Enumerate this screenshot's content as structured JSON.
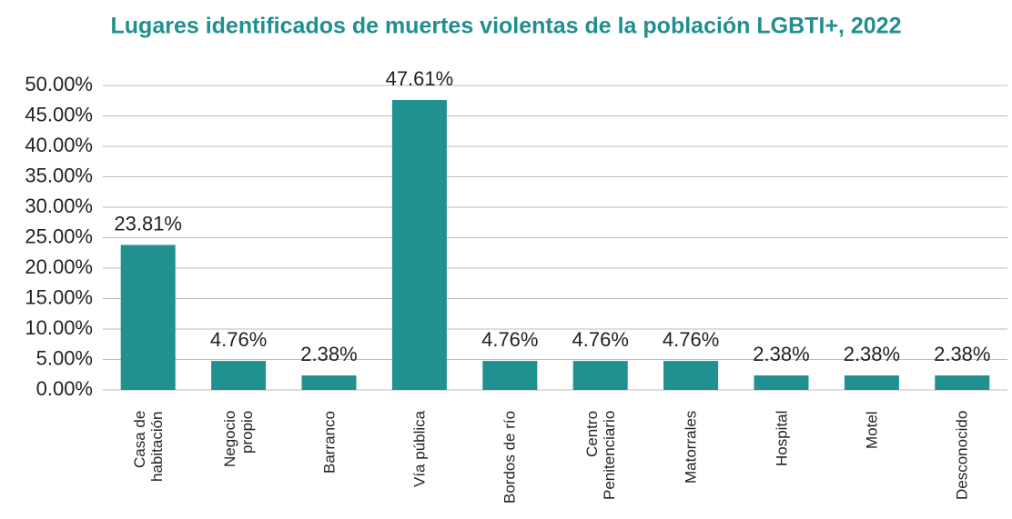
{
  "chart_data": {
    "type": "bar",
    "title": "Lugares identificados de muertes violentas de la población LGBTI+, 2022",
    "categories": [
      "Casa de\nhabitación",
      "Negocio\npropio",
      "Barranco",
      "Vía pública",
      "Bordos de río",
      "Centro\nPenitenciario",
      "Matorrales",
      "Hospital",
      "Motel",
      "Desconocido"
    ],
    "values": [
      23.81,
      4.76,
      2.38,
      47.61,
      4.76,
      4.76,
      4.76,
      2.38,
      2.38,
      2.38
    ],
    "value_labels": [
      "23.81%",
      "4.76%",
      "2.38%",
      "47.61%",
      "4.76%",
      "4.76%",
      "4.76%",
      "2.38%",
      "2.38%",
      "2.38%"
    ],
    "color": "#219090",
    "ylim": [
      0,
      50
    ],
    "yticks": [
      {
        "value": 0,
        "label": "0.00%"
      },
      {
        "value": 5,
        "label": "5.00%"
      },
      {
        "value": 10,
        "label": "10.00%"
      },
      {
        "value": 15,
        "label": "15.00%"
      },
      {
        "value": 20,
        "label": "20.00%"
      },
      {
        "value": 25,
        "label": "25.00%"
      },
      {
        "value": 30,
        "label": "30.00%"
      },
      {
        "value": 35,
        "label": "35.00%"
      },
      {
        "value": 40,
        "label": "40.00%"
      },
      {
        "value": 45,
        "label": "45.00%"
      },
      {
        "value": 50,
        "label": "50.00%"
      }
    ],
    "grid": true
  }
}
